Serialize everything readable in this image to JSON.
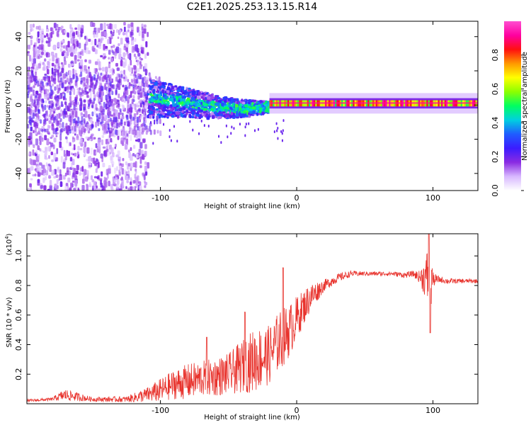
{
  "title": "C2E1.2025.253.13.15.R14",
  "colors": {
    "snr_line": "#e8332d",
    "background": "#ffffff",
    "colorbar_stops": [
      "#ffffff",
      "#d8b8ff",
      "#8a2be2",
      "#3b1cff",
      "#1f5cff",
      "#00d0e0",
      "#00ff60",
      "#8cff00",
      "#ffff00",
      "#ff9900",
      "#ff1010",
      "#ff00a0",
      "#ff4fd0"
    ]
  },
  "chart_data": [
    {
      "type": "heatmap",
      "name": "spectrogram",
      "xlabel": "Height of straight line (km)",
      "ylabel": "Frequency (Hz)",
      "xlim": [
        -198,
        133
      ],
      "ylim": [
        -50,
        49
      ],
      "xticks": [
        -100,
        0,
        100
      ],
      "xtick_labels": [
        "-100",
        "0",
        "100"
      ],
      "yticks": [
        -40,
        -20,
        0,
        20,
        40
      ],
      "ytick_labels": [
        "-40",
        "-20",
        "0",
        "20",
        "40"
      ],
      "colorbar": {
        "label": "Normalized spectral amplitude",
        "range": [
          0,
          1
        ],
        "ticks": [
          0,
          0.2,
          0.4,
          0.6,
          0.8
        ],
        "tick_labels": [
          "0.0",
          "0.2",
          "0.4",
          "0.6",
          "0.8"
        ]
      },
      "description_series": [
        {
          "name": "scattered noise region",
          "x_range": [
            -198,
            -110
          ],
          "freq_range": [
            -50,
            49
          ],
          "amplitude": [
            0.05,
            0.2
          ]
        },
        {
          "name": "broadening carrier",
          "x_range": [
            -110,
            -20
          ],
          "freq_range": [
            -8,
            12
          ],
          "amplitude": [
            0.2,
            0.45
          ]
        },
        {
          "name": "stable carrier",
          "x_range": [
            -20,
            133
          ],
          "freq_center": 1,
          "freq_halfwidth": 3,
          "amplitude": [
            0.5,
            0.95
          ]
        }
      ]
    },
    {
      "type": "line",
      "name": "snr",
      "xlabel": "Height of straight line (km)",
      "ylabel": "SNR (10 * v/v)",
      "scale_note": "(x10",
      "scale_exp": "4",
      "scale_close": ")",
      "xlim": [
        -198,
        133
      ],
      "ylim": [
        0,
        1.15
      ],
      "xticks": [
        -100,
        0,
        100
      ],
      "xtick_labels": [
        "-100",
        "0",
        "100"
      ],
      "yticks": [
        0.2,
        0.4,
        0.6,
        0.8,
        1.0
      ],
      "ytick_labels": [
        "0.2",
        "0.4",
        "0.6",
        "0.8",
        "1.0"
      ],
      "envelope": {
        "x": [
          -198,
          -180,
          -170,
          -150,
          -125,
          -110,
          -100,
          -90,
          -80,
          -70,
          -60,
          -50,
          -40,
          -30,
          -20,
          -15,
          -10,
          -5,
          0,
          5,
          10,
          20,
          30,
          40,
          50,
          60,
          70,
          80,
          85,
          90,
          95,
          98,
          100,
          105,
          110,
          120,
          133
        ],
        "y": [
          0.02,
          0.03,
          0.06,
          0.03,
          0.03,
          0.06,
          0.09,
          0.13,
          0.15,
          0.17,
          0.18,
          0.2,
          0.25,
          0.3,
          0.33,
          0.4,
          0.45,
          0.5,
          0.58,
          0.65,
          0.72,
          0.8,
          0.85,
          0.88,
          0.88,
          0.88,
          0.88,
          0.87,
          0.88,
          0.86,
          0.85,
          0.9,
          0.84,
          0.84,
          0.83,
          0.83,
          0.83
        ],
        "noise_amplitude": [
          0.01,
          0.01,
          0.04,
          0.015,
          0.02,
          0.05,
          0.08,
          0.1,
          0.12,
          0.12,
          0.13,
          0.14,
          0.18,
          0.22,
          0.2,
          0.2,
          0.2,
          0.18,
          0.15,
          0.12,
          0.1,
          0.04,
          0.03,
          0.02,
          0.015,
          0.015,
          0.015,
          0.02,
          0.02,
          0.04,
          0.15,
          0.35,
          0.05,
          0.02,
          0.02,
          0.015,
          0.015
        ]
      },
      "peaks": [
        {
          "x": -66,
          "y": 0.45
        },
        {
          "x": -38,
          "y": 0.62
        },
        {
          "x": -10,
          "y": 0.92
        },
        {
          "x": 97,
          "y": 1.15
        },
        {
          "x": 98,
          "y": 0.48
        }
      ]
    }
  ]
}
